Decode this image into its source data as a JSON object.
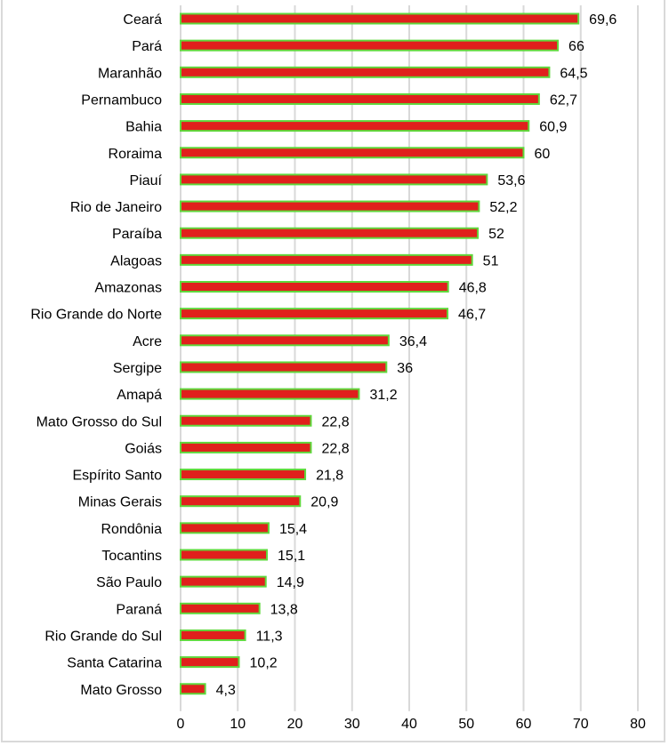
{
  "chart_data": {
    "type": "bar",
    "orientation": "horizontal",
    "title": "",
    "xlabel": "",
    "ylabel": "",
    "xlim": [
      0,
      80
    ],
    "xticks": [
      0,
      10,
      20,
      30,
      40,
      50,
      60,
      70,
      80
    ],
    "grid": "vertical",
    "legend": "none",
    "bar_fill_color": "#e0201c",
    "bar_edge_color": "#5fd83c",
    "categories": [
      "Ceará",
      "Pará",
      "Maranhão",
      "Pernambuco",
      "Bahia",
      "Roraima",
      "Piauí",
      "Rio de Janeiro",
      "Paraíba",
      "Alagoas",
      "Amazonas",
      "Rio Grande do Norte",
      "Acre",
      "Sergipe",
      "Amapá",
      "Mato Grosso do Sul",
      "Goiás",
      "Espírito Santo",
      "Minas Gerais",
      "Rondônia",
      "Tocantins",
      "São Paulo",
      "Paraná",
      "Rio Grande do Sul",
      "Santa Catarina",
      "Mato Grosso"
    ],
    "values": [
      69.6,
      66,
      64.5,
      62.7,
      60.9,
      60,
      53.6,
      52.2,
      52,
      51,
      46.8,
      46.7,
      36.4,
      36,
      31.2,
      22.8,
      22.8,
      21.8,
      20.9,
      15.4,
      15.1,
      14.9,
      13.8,
      11.3,
      10.2,
      4.3
    ],
    "value_labels": [
      "69,6",
      "66",
      "64,5",
      "62,7",
      "60,9",
      "60",
      "53,6",
      "52,2",
      "52",
      "51",
      "46,8",
      "46,7",
      "36,4",
      "36",
      "31,2",
      "22,8",
      "22,8",
      "21,8",
      "20,9",
      "15,4",
      "15,1",
      "14,9",
      "13,8",
      "11,3",
      "10,2",
      "4,3"
    ],
    "tick_labels": [
      "0",
      "10",
      "20",
      "30",
      "40",
      "50",
      "60",
      "70",
      "80"
    ]
  }
}
